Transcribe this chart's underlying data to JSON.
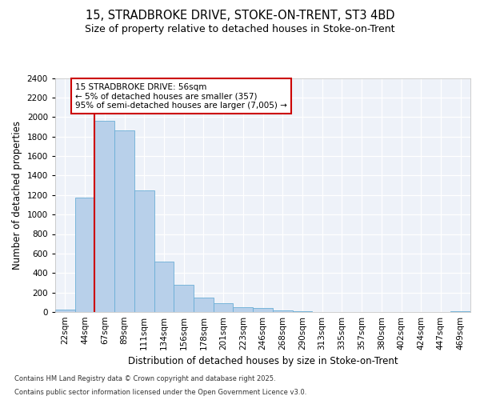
{
  "title": "15, STRADBROKE DRIVE, STOKE-ON-TRENT, ST3 4BD",
  "subtitle": "Size of property relative to detached houses in Stoke-on-Trent",
  "xlabel": "Distribution of detached houses by size in Stoke-on-Trent",
  "ylabel": "Number of detached properties",
  "categories": [
    "22sqm",
    "44sqm",
    "67sqm",
    "89sqm",
    "111sqm",
    "134sqm",
    "156sqm",
    "178sqm",
    "201sqm",
    "223sqm",
    "246sqm",
    "268sqm",
    "290sqm",
    "313sqm",
    "335sqm",
    "357sqm",
    "380sqm",
    "402sqm",
    "424sqm",
    "447sqm",
    "469sqm"
  ],
  "values": [
    25,
    1170,
    1960,
    1860,
    1250,
    520,
    275,
    150,
    90,
    50,
    40,
    20,
    5,
    2,
    1,
    1,
    0,
    0,
    0,
    0,
    5
  ],
  "bar_color": "#b8d0ea",
  "bar_edge_color": "#6aaed6",
  "vline_x": 2.0,
  "vline_color": "#cc0000",
  "annotation_title": "15 STRADBROKE DRIVE: 56sqm",
  "annotation_line1": "← 5% of detached houses are smaller (357)",
  "annotation_line2": "95% of semi-detached houses are larger (7,005) →",
  "annotation_box_color": "#cc0000",
  "ylim": [
    0,
    2400
  ],
  "yticks": [
    0,
    200,
    400,
    600,
    800,
    1000,
    1200,
    1400,
    1600,
    1800,
    2000,
    2200,
    2400
  ],
  "footer1": "Contains HM Land Registry data © Crown copyright and database right 2025.",
  "footer2": "Contains public sector information licensed under the Open Government Licence v3.0.",
  "bg_color": "#eef2f9",
  "title_fontsize": 10.5,
  "subtitle_fontsize": 9,
  "axis_label_fontsize": 8.5,
  "tick_fontsize": 7.5,
  "footer_fontsize": 6.0
}
